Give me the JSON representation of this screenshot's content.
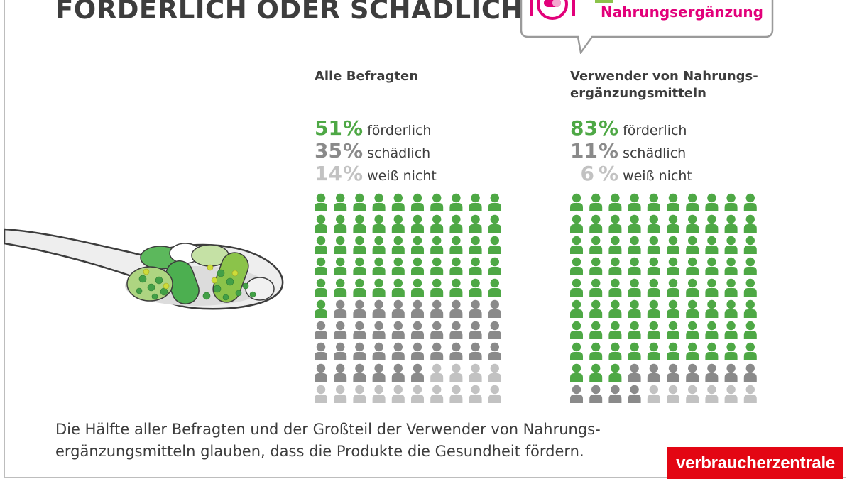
{
  "title": "FÖRDERLICH ODER SCHÄDLICH?",
  "badge": {
    "text": "Nahrungsergänzung",
    "icon": "plate-pill-icon"
  },
  "colors": {
    "green": "#4ea845",
    "darkgrey": "#8a8a8a",
    "lightgrey": "#c2c2c2",
    "magenta": "#e2007a",
    "brand": "#e30613"
  },
  "chart_data": [
    {
      "type": "pictogram",
      "title": "Alle Befragten",
      "categories": [
        "förderlich",
        "schädlich",
        "weiß nicht"
      ],
      "values": [
        51,
        35,
        14
      ],
      "unit": "%",
      "total_icons": 100
    },
    {
      "type": "pictogram",
      "title": "Verwender von Nahrungs-\nergänzungsmitteln",
      "categories": [
        "förderlich",
        "schädlich",
        "weiß nicht"
      ],
      "values": [
        83,
        11,
        6
      ],
      "unit": "%",
      "total_icons": 100
    }
  ],
  "footer": {
    "line1": "Die Hälfte aller Befragten und der Großteil der Verwender von Nahrungs-",
    "line2": "ergänzungsmitteln glauben, dass die Produkte die Gesundheit fördern."
  },
  "brand": "verbraucherzentrale"
}
